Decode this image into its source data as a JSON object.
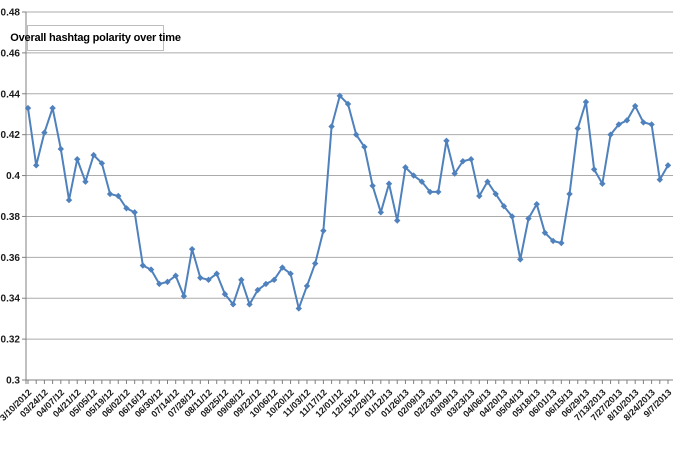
{
  "chart": {
    "title": "Overall hashtag polarity over time"
  },
  "chart_data": {
    "type": "line",
    "title": "Overall hashtag polarity over time",
    "xlabel": "",
    "ylabel": "",
    "ylim": [
      0.3,
      0.48
    ],
    "y_tick_step": 0.02,
    "grid": "horizontal",
    "legend": "none",
    "marker": "diamond",
    "line_color": "#4F81BD",
    "gridline_color": "#ABABAB",
    "axis_color": "#808080",
    "label_color": "#1a1a1a",
    "background": "#FFFFFF",
    "x_label_every_n_points": 2,
    "x_labels": [
      "3/10/2012",
      "03/24/12",
      "04/07/12",
      "04/21/12",
      "05/05/12",
      "05/19/12",
      "06/02/12",
      "06/16/12",
      "06/30/12",
      "07/14/12",
      "07/28/12",
      "08/11/12",
      "08/25/12",
      "09/08/12",
      "09/22/12",
      "10/06/12",
      "10/20/12",
      "11/03/12",
      "11/17/12",
      "12/01/12",
      "12/15/12",
      "12/29/12",
      "01/12/13",
      "01/26/13",
      "02/09/13",
      "02/23/13",
      "03/09/13",
      "03/23/13",
      "04/06/13",
      "04/20/13",
      "05/04/13",
      "05/18/13",
      "06/01/13",
      "06/15/13",
      "06/29/13",
      "7/13/2013",
      "7/27/2013",
      "8/10/2013",
      "8/24/2013",
      "9/7/2013"
    ],
    "values": [
      0.433,
      0.405,
      0.421,
      0.433,
      0.413,
      0.388,
      0.408,
      0.397,
      0.41,
      0.406,
      0.391,
      0.39,
      0.384,
      0.382,
      0.356,
      0.354,
      0.347,
      0.348,
      0.351,
      0.341,
      0.364,
      0.35,
      0.349,
      0.352,
      0.342,
      0.337,
      0.349,
      0.337,
      0.344,
      0.347,
      0.349,
      0.355,
      0.352,
      0.335,
      0.346,
      0.357,
      0.373,
      0.424,
      0.439,
      0.435,
      0.42,
      0.414,
      0.395,
      0.382,
      0.396,
      0.378,
      0.404,
      0.4,
      0.397,
      0.392,
      0.392,
      0.417,
      0.401,
      0.407,
      0.408,
      0.39,
      0.397,
      0.391,
      0.385,
      0.38,
      0.359,
      0.379,
      0.386,
      0.372,
      0.368,
      0.367,
      0.391,
      0.423,
      0.436,
      0.403,
      0.396,
      0.42,
      0.425,
      0.427,
      0.434,
      0.426,
      0.425,
      0.398,
      0.405
    ]
  }
}
